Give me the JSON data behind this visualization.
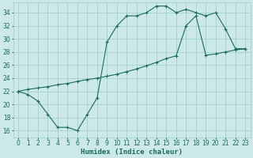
{
  "line1_x": [
    0,
    1,
    2,
    3,
    4,
    5,
    6,
    7,
    8,
    9,
    10,
    11,
    12,
    13,
    14,
    15,
    16,
    17,
    18,
    19,
    20,
    21,
    22,
    23
  ],
  "line1_y": [
    22,
    21.5,
    20.5,
    18.5,
    16.5,
    16.5,
    16,
    18.5,
    21,
    29.5,
    32,
    33.5,
    33.5,
    34,
    35,
    35,
    34,
    34.5,
    34,
    33.5,
    34,
    31.5,
    28.5,
    28.5
  ],
  "line2_x": [
    0,
    1,
    2,
    3,
    4,
    5,
    6,
    7,
    8,
    9,
    10,
    11,
    12,
    13,
    14,
    15,
    16,
    17,
    18,
    19,
    20,
    21,
    22,
    23
  ],
  "line2_y": [
    22,
    22.3,
    22.5,
    22.7,
    23.0,
    23.2,
    23.5,
    23.8,
    24.0,
    24.3,
    24.6,
    25.0,
    25.4,
    25.9,
    26.4,
    27.0,
    27.4,
    32.0,
    33.5,
    27.5,
    27.7,
    28.0,
    28.3,
    28.5
  ],
  "line_color": "#1a6b5a",
  "background_color": "#cce8e8",
  "grid_color": "#99cccc",
  "xlabel": "Humidex (Indice chaleur)",
  "ylim": [
    15,
    35.5
  ],
  "xlim": [
    -0.5,
    23.5
  ],
  "yticks": [
    16,
    18,
    20,
    22,
    24,
    26,
    28,
    30,
    32,
    34
  ],
  "xticks": [
    0,
    1,
    2,
    3,
    4,
    5,
    6,
    7,
    8,
    9,
    10,
    11,
    12,
    13,
    14,
    15,
    16,
    17,
    18,
    19,
    20,
    21,
    22,
    23
  ],
  "xlabel_fontsize": 6.5,
  "tick_fontsize": 5.5
}
